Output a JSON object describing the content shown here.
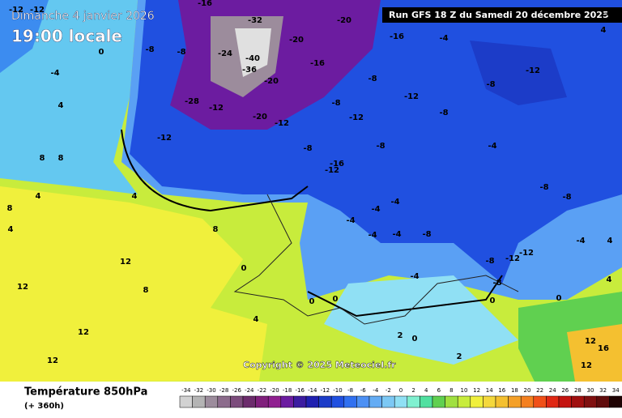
{
  "header": {
    "date": "Dimanche 4 janvier 2026",
    "time": "19:00 locale",
    "run": "Run GFS 18 Z du Samedi 20 décembre 2025"
  },
  "copyright": "Copyright © 2025 Meteociel.fr",
  "legend": {
    "title": "Température 850hPa",
    "lead": "(+ 360h)",
    "scale": [
      -34,
      -32,
      -30,
      -28,
      -26,
      -24,
      -22,
      -20,
      -18,
      -16,
      -14,
      -12,
      -10,
      -8,
      -6,
      -4,
      -2,
      0,
      2,
      4,
      6,
      8,
      10,
      12,
      14,
      16,
      18,
      20,
      22,
      24,
      26,
      28,
      30,
      32,
      34
    ],
    "colors": [
      "#d2d2d2",
      "#b4b4b4",
      "#9c8c9c",
      "#8c6c8c",
      "#7c4c7c",
      "#6c2c6c",
      "#80207c",
      "#902090",
      "#6c1ca0",
      "#3c1ca0",
      "#2020b0",
      "#1c3cc8",
      "#2050e0",
      "#3070f0",
      "#4c90f4",
      "#64acf4",
      "#7cc8f4",
      "#90e0f4",
      "#80f0d0",
      "#50e0a0",
      "#60d050",
      "#a0e040",
      "#c8ec3c",
      "#f0f03c",
      "#f4d83c",
      "#f4c030",
      "#f4a028",
      "#f48020",
      "#f05018",
      "#e02814",
      "#c41410",
      "#a01010",
      "#801010",
      "#600c0c",
      "#200404"
    ]
  },
  "contour_labels": [
    -12,
    -12,
    -16,
    -32,
    -20,
    -20,
    -24,
    -40,
    -36,
    -20,
    -28,
    -12,
    -20,
    -12,
    -12,
    -16,
    -16,
    -4,
    -12,
    -8,
    -8,
    -12,
    -8,
    -8,
    -12,
    -8,
    -8,
    -4,
    -16,
    -12,
    -4,
    -4,
    -4,
    -4,
    -8,
    -4,
    -8,
    -8,
    -12,
    -12,
    -8,
    -4,
    -8,
    -4,
    0,
    0,
    2,
    0,
    2,
    4,
    8,
    4,
    12,
    12,
    12,
    12,
    8,
    8,
    8,
    8,
    4,
    4,
    4,
    -4,
    0,
    -8,
    -8,
    -12,
    4,
    12,
    16,
    12,
    4,
    4,
    0,
    0,
    0
  ]
}
